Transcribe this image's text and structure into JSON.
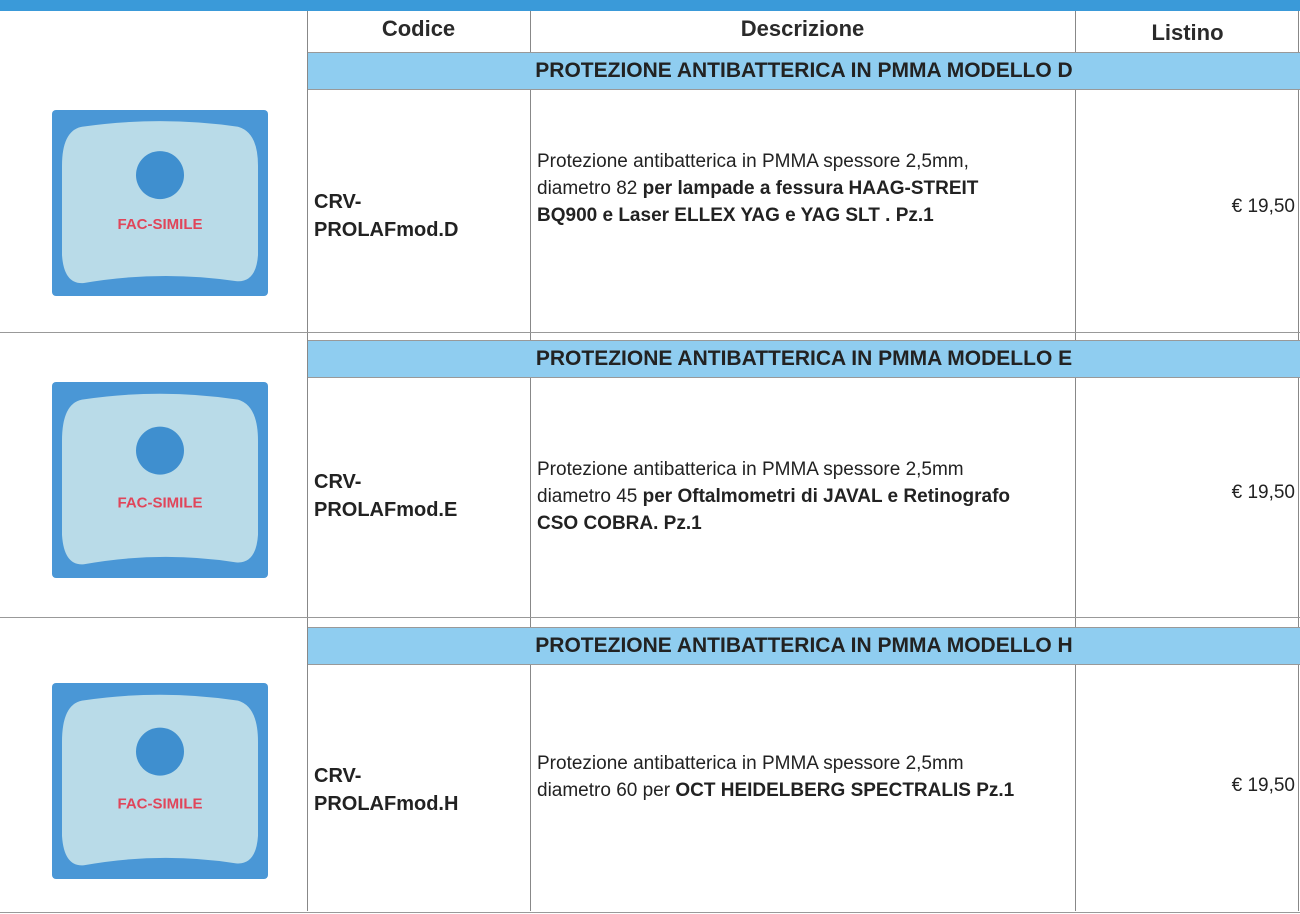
{
  "header": {
    "codice": "Codice",
    "descrizione": "Descrizione",
    "listino": "Listino"
  },
  "image_label": "FAC-SIMILE",
  "rows": [
    {
      "section": "PROTEZIONE ANTIBATTERICA IN PMMA MODELLO D",
      "code": "CRV-PROLAFmod.D",
      "description": [
        {
          "text": "Protezione antibatterica in PMMA spessore 2,5mm, diametro 82 ",
          "bold": false
        },
        {
          "text": "per lampade a fessura HAAG-STREIT BQ900 e Laser ELLEX YAG e YAG SLT . Pz.1",
          "bold": true
        }
      ],
      "price": "€ 19,50"
    },
    {
      "section": "PROTEZIONE ANTIBATTERICA IN PMMA MODELLO E",
      "code": "CRV-PROLAFmod.E",
      "description": [
        {
          "text": "Protezione antibatterica in PMMA spessore 2,5mm diametro 45 ",
          "bold": false
        },
        {
          "text": "per Oftalmometri di JAVAL e Retinografo CSO COBRA. Pz.1",
          "bold": true
        }
      ],
      "price": "€ 19,50"
    },
    {
      "section": "PROTEZIONE ANTIBATTERICA IN PMMA MODELLO H",
      "code": "CRV-PROLAFmod.H",
      "description": [
        {
          "text": "Protezione antibatterica in PMMA spessore 2,5mm diametro 60 per ",
          "bold": false
        },
        {
          "text": "OCT HEIDELBERG SPECTRALIS Pz.1",
          "bold": true
        }
      ],
      "price": "€ 19,50"
    }
  ]
}
